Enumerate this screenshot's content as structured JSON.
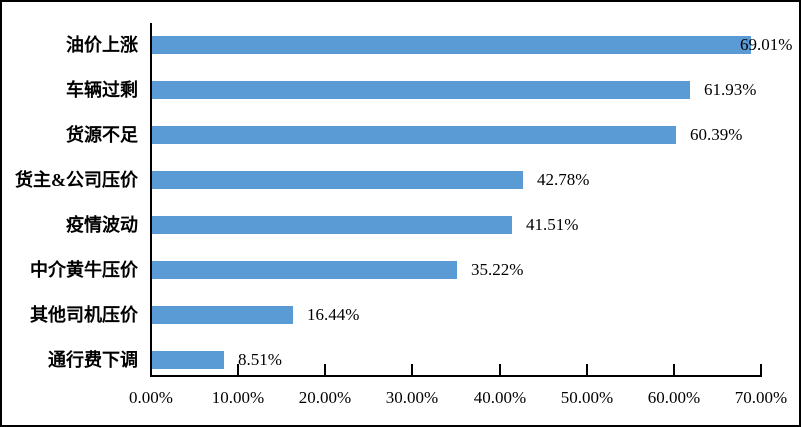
{
  "chart_data": {
    "type": "bar",
    "orientation": "horizontal",
    "title": "",
    "xlabel": "",
    "ylabel": "",
    "xlim": [
      0,
      70
    ],
    "grid": false,
    "legend": false,
    "categories": [
      "油价上涨",
      "车辆过剩",
      "货源不足",
      "货主&公司压价",
      "疫情波动",
      "中介黄牛压价",
      "其他司机压价",
      "通行费下调"
    ],
    "values": [
      69.01,
      61.93,
      60.39,
      42.78,
      41.51,
      35.22,
      16.44,
      8.51
    ],
    "value_labels": [
      "69.01%",
      "61.93%",
      "60.39%",
      "42.78%",
      "41.51%",
      "35.22%",
      "16.44%",
      "8.51%"
    ],
    "x_ticks": [
      "0.00%",
      "10.00%",
      "20.00%",
      "30.00%",
      "40.00%",
      "50.00%",
      "60.00%",
      "70.00%"
    ],
    "x_tick_values": [
      0,
      10,
      20,
      30,
      40,
      50,
      60,
      70
    ],
    "colors": {
      "bar": "#5B9BD5",
      "axis": "#000000",
      "text": "#000000",
      "background": "#FFFFFF"
    }
  }
}
